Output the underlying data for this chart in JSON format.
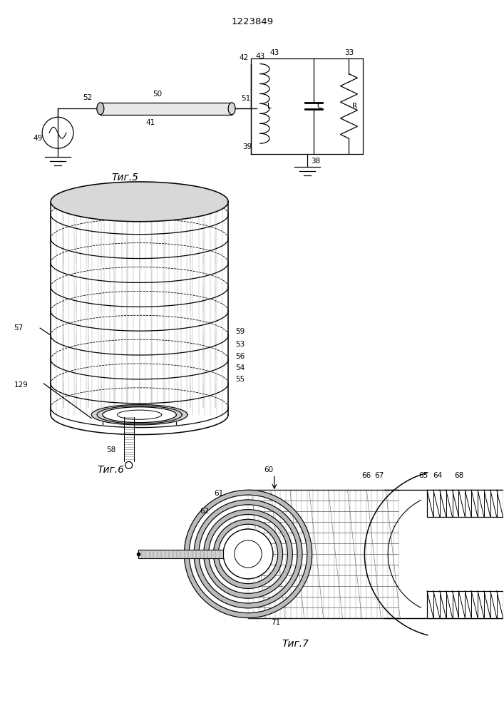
{
  "title": "1223849",
  "bg_color": "#ffffff",
  "line_color": "#000000",
  "fig5_label": "Τиг.5",
  "fig6_label": "Τиг.6",
  "fig7_label": "Τиг.7"
}
